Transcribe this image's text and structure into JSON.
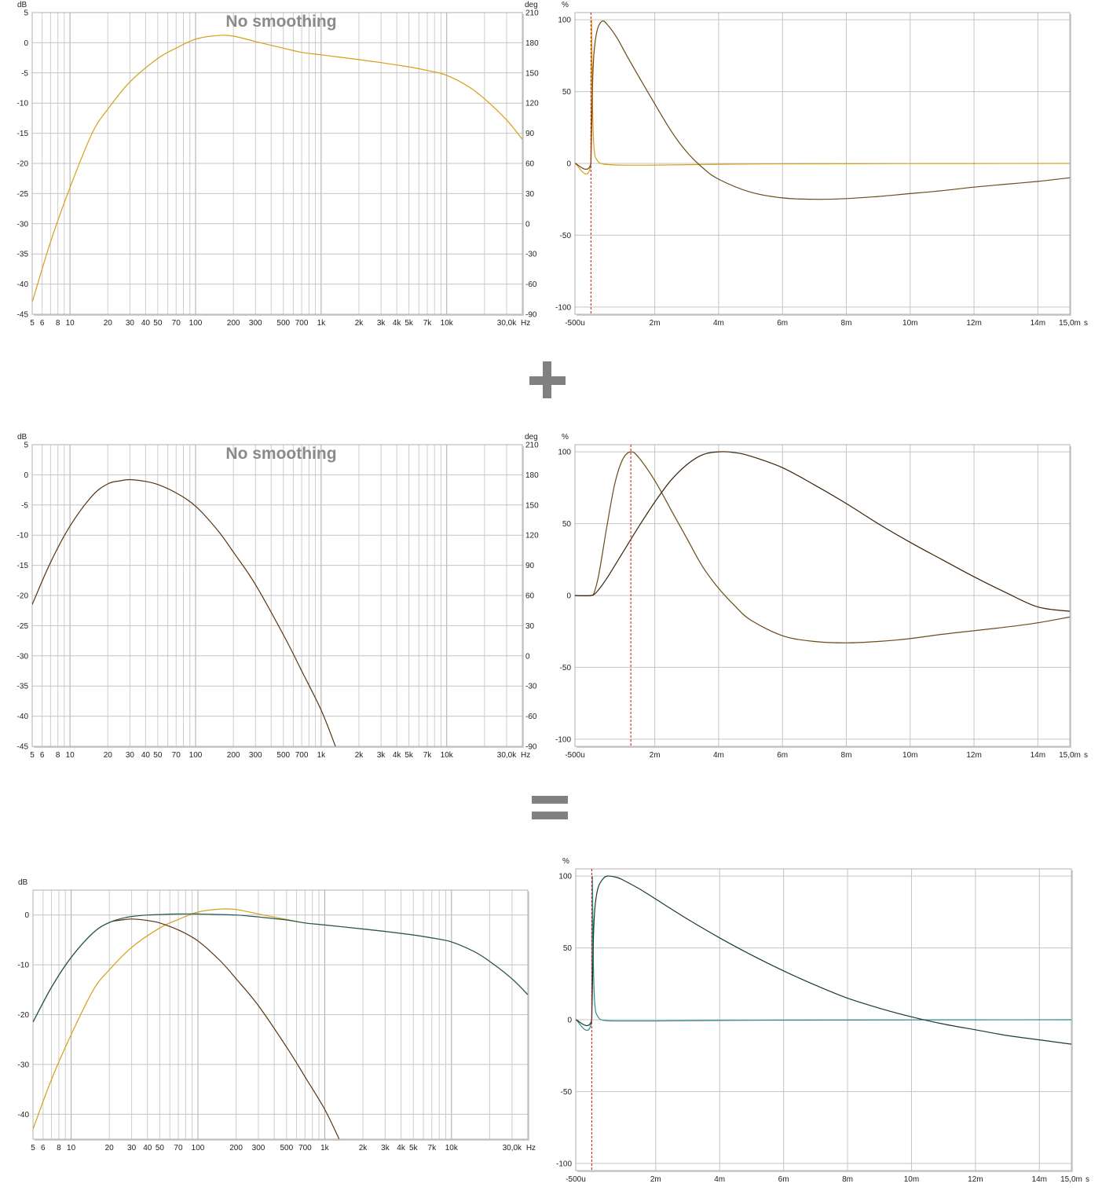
{
  "chart_data": [
    {
      "type": "line",
      "panel": "frequency-response",
      "annotation": "No smoothing",
      "x_scale": "log",
      "x_unit": "Hz",
      "xlim": [
        5,
        40000
      ],
      "x_tick_labels": [
        "5",
        "6",
        "8",
        "10",
        "20",
        "30",
        "40",
        "50",
        "70",
        "100",
        "200",
        "300",
        "500",
        "700",
        "1k",
        "2k",
        "3k",
        "4k",
        "5k",
        "7k",
        "10k",
        "30,0k"
      ],
      "x_tick_values": [
        5,
        6,
        8,
        10,
        20,
        30,
        40,
        50,
        70,
        100,
        200,
        300,
        500,
        700,
        1000,
        2000,
        3000,
        4000,
        5000,
        7000,
        10000,
        30000
      ],
      "y_unit": "dB",
      "ylim": [
        -45,
        5
      ],
      "y_ticks": [
        5,
        0,
        -5,
        -10,
        -15,
        -20,
        -25,
        -30,
        -35,
        -40,
        -45
      ],
      "y2_unit": "deg",
      "y2lim": [
        -90,
        210
      ],
      "y2_ticks": [
        210,
        180,
        150,
        120,
        90,
        60,
        30,
        0,
        -30,
        -60,
        -90
      ],
      "grid": true,
      "series": [
        {
          "color": "#d4a017",
          "x": [
            5,
            7,
            10,
            15,
            20,
            30,
            50,
            70,
            100,
            150,
            200,
            300,
            500,
            700,
            1000,
            2000,
            3000,
            5000,
            7000,
            10000,
            15000,
            20000,
            30000,
            40000
          ],
          "y": [
            -43,
            -33,
            -24,
            -15,
            -11,
            -6.5,
            -2.6,
            -0.9,
            0.6,
            1.2,
            1.1,
            0.2,
            -0.9,
            -1.6,
            -2.0,
            -2.8,
            -3.3,
            -4.0,
            -4.6,
            -5.4,
            -7.3,
            -9.3,
            -12.8,
            -16
          ]
        }
      ]
    },
    {
      "type": "line",
      "panel": "impulse-response",
      "x_unit": "s",
      "xlim": [
        -0.5,
        15.0
      ],
      "x_tick_labels": [
        "-500u",
        "2m",
        "4m",
        "6m",
        "8m",
        "10m",
        "12m",
        "14m",
        "15,0m"
      ],
      "x_tick_values": [
        -0.5,
        2,
        4,
        6,
        8,
        10,
        12,
        14,
        15
      ],
      "y_unit": "%",
      "ylim": [
        -105,
        105
      ],
      "y_ticks": [
        100,
        50,
        0,
        -50,
        -100
      ],
      "marker_x": 0,
      "grid": true,
      "series": [
        {
          "color": "#d4a017",
          "x": [
            -0.5,
            0,
            0.02,
            0.05,
            0.1,
            0.2,
            0.4,
            1,
            2,
            4,
            6,
            8,
            10,
            12,
            15
          ],
          "y": [
            0,
            0,
            100,
            40,
            10,
            2,
            -0.5,
            -1.2,
            -1.2,
            -0.6,
            -0.3,
            -0.2,
            -0.1,
            -0.05,
            0
          ]
        },
        {
          "color": "#6b4a1a",
          "x": [
            -0.5,
            0,
            0.05,
            0.1,
            0.2,
            0.35,
            0.5,
            0.8,
            1.2,
            1.8,
            2.5,
            3,
            3.5,
            4,
            5,
            6,
            7,
            8,
            9,
            10,
            11,
            12,
            13,
            14,
            15
          ],
          "y": [
            0,
            0,
            55,
            78,
            93,
            99,
            97,
            88,
            72,
            49,
            23,
            8,
            -3,
            -11,
            -20,
            -24,
            -25,
            -24.5,
            -23,
            -21,
            -19,
            -16.5,
            -14.5,
            -12.5,
            -10
          ]
        }
      ]
    },
    {
      "type": "line",
      "panel": "frequency-response",
      "annotation": "No smoothing",
      "x_scale": "log",
      "x_unit": "Hz",
      "xlim": [
        5,
        40000
      ],
      "x_tick_labels": [
        "5",
        "6",
        "8",
        "10",
        "20",
        "30",
        "40",
        "50",
        "70",
        "100",
        "200",
        "300",
        "500",
        "700",
        "1k",
        "2k",
        "3k",
        "4k",
        "5k",
        "7k",
        "10k",
        "30,0k"
      ],
      "x_tick_values": [
        5,
        6,
        8,
        10,
        20,
        30,
        40,
        50,
        70,
        100,
        200,
        300,
        500,
        700,
        1000,
        2000,
        3000,
        4000,
        5000,
        7000,
        10000,
        30000
      ],
      "y_unit": "dB",
      "ylim": [
        -45,
        5
      ],
      "y_ticks": [
        5,
        0,
        -5,
        -10,
        -15,
        -20,
        -25,
        -30,
        -35,
        -40,
        -45
      ],
      "y2_unit": "deg",
      "y2lim": [
        -90,
        210
      ],
      "y2_ticks": [
        210,
        180,
        150,
        120,
        90,
        60,
        30,
        0,
        -30,
        -60,
        -90
      ],
      "grid": true,
      "series": [
        {
          "color": "#5a3410",
          "x": [
            5,
            7,
            10,
            15,
            20,
            25,
            30,
            40,
            50,
            70,
            100,
            150,
            200,
            300,
            500,
            700,
            1000,
            1300
          ],
          "y": [
            -21.5,
            -14.5,
            -8.5,
            -3.5,
            -1.5,
            -1.0,
            -0.8,
            -1.1,
            -1.6,
            -3.0,
            -5.2,
            -9.2,
            -12.8,
            -18.2,
            -26.5,
            -32.5,
            -39,
            -45
          ]
        }
      ]
    },
    {
      "type": "line",
      "panel": "impulse-response",
      "x_unit": "s",
      "xlim": [
        -0.5,
        15.0
      ],
      "x_tick_labels": [
        "-500u",
        "2m",
        "4m",
        "6m",
        "8m",
        "10m",
        "12m",
        "14m",
        "15,0m"
      ],
      "x_tick_values": [
        -0.5,
        2,
        4,
        6,
        8,
        10,
        12,
        14,
        15
      ],
      "y_unit": "%",
      "ylim": [
        -105,
        105
      ],
      "y_ticks": [
        100,
        50,
        0,
        -50,
        -100
      ],
      "marker_x": 1.25,
      "grid": true,
      "series": [
        {
          "color": "#6b4a1a",
          "x": [
            -0.5,
            0,
            0.1,
            0.25,
            0.5,
            0.75,
            1,
            1.25,
            1.5,
            2,
            2.5,
            3,
            3.5,
            4,
            4.5,
            5,
            6,
            7,
            8,
            9,
            10,
            11,
            12,
            13,
            14,
            15
          ],
          "y": [
            0,
            0,
            2,
            15,
            48,
            78,
            95,
            100,
            96,
            80,
            60,
            40,
            20,
            5,
            -7,
            -17,
            -28,
            -32,
            -33,
            -32,
            -30,
            -27,
            -24.5,
            -22,
            -19,
            -15
          ]
        },
        {
          "color": "#3a2408",
          "x": [
            -0.5,
            0,
            0.2,
            0.5,
            1,
            1.5,
            2,
            2.5,
            3,
            3.5,
            4,
            4.5,
            5,
            6,
            7,
            8,
            9,
            10,
            11,
            12,
            13,
            14,
            15
          ],
          "y": [
            0,
            0,
            3,
            12,
            30,
            48,
            65,
            80,
            91,
            98,
            100,
            99.5,
            97,
            89,
            77,
            64,
            50,
            37,
            25,
            13,
            2,
            -8,
            -11
          ]
        }
      ]
    },
    {
      "type": "line",
      "panel": "frequency-response",
      "x_scale": "log",
      "x_unit": "Hz",
      "xlim": [
        5,
        40000
      ],
      "x_tick_labels": [
        "5",
        "6",
        "8",
        "10",
        "20",
        "30",
        "40",
        "50",
        "70",
        "100",
        "200",
        "300",
        "500",
        "700",
        "1k",
        "2k",
        "3k",
        "4k",
        "5k",
        "7k",
        "10k",
        "30,0k"
      ],
      "x_tick_values": [
        5,
        6,
        8,
        10,
        20,
        30,
        40,
        50,
        70,
        100,
        200,
        300,
        500,
        700,
        1000,
        2000,
        3000,
        4000,
        5000,
        7000,
        10000,
        30000
      ],
      "y_unit": "dB",
      "ylim": [
        -45,
        5
      ],
      "y_ticks": [
        0,
        -10,
        -20,
        -30,
        -40
      ],
      "grid": true,
      "series": [
        {
          "color": "#d4a017",
          "x": [
            5,
            7,
            10,
            15,
            20,
            30,
            50,
            70,
            100,
            150,
            200,
            300,
            500,
            700,
            1000,
            2000,
            3000,
            5000,
            7000,
            10000,
            15000,
            20000,
            30000,
            40000
          ],
          "y": [
            -43,
            -33,
            -24,
            -15,
            -11,
            -6.5,
            -2.6,
            -0.9,
            0.6,
            1.2,
            1.1,
            0.2,
            -0.9,
            -1.6,
            -2.0,
            -2.8,
            -3.3,
            -4.0,
            -4.6,
            -5.4,
            -7.3,
            -9.3,
            -12.8,
            -16
          ]
        },
        {
          "color": "#5a3410",
          "x": [
            5,
            7,
            10,
            15,
            20,
            25,
            30,
            40,
            50,
            70,
            100,
            150,
            200,
            300,
            500,
            700,
            1000,
            1300
          ],
          "y": [
            -21.5,
            -14.5,
            -8.5,
            -3.5,
            -1.5,
            -1.0,
            -0.8,
            -1.1,
            -1.6,
            -3.0,
            -5.2,
            -9.2,
            -12.8,
            -18.2,
            -26.5,
            -32.5,
            -39,
            -45
          ]
        },
        {
          "color": "#1f5a4a",
          "x": [
            5,
            7,
            10,
            15,
            20,
            25,
            30,
            40,
            50,
            70,
            100,
            150,
            200,
            300,
            500,
            700,
            1000,
            2000,
            3000,
            5000,
            7000,
            10000,
            15000,
            20000,
            30000,
            40000
          ],
          "y": [
            -21.5,
            -14.5,
            -8.5,
            -3.5,
            -1.5,
            -0.7,
            -0.3,
            0,
            0.1,
            0.2,
            0.2,
            0.1,
            0,
            -0.4,
            -1.0,
            -1.6,
            -2.0,
            -2.8,
            -3.3,
            -4.0,
            -4.6,
            -5.4,
            -7.3,
            -9.3,
            -12.8,
            -16
          ]
        }
      ]
    },
    {
      "type": "line",
      "panel": "impulse-response",
      "x_unit": "s",
      "xlim": [
        -0.5,
        15.0
      ],
      "x_tick_labels": [
        "-500u",
        "2m",
        "4m",
        "6m",
        "8m",
        "10m",
        "12m",
        "14m",
        "15,0m"
      ],
      "x_tick_values": [
        -0.5,
        2,
        4,
        6,
        8,
        10,
        12,
        14,
        15
      ],
      "y_unit": "%",
      "ylim": [
        -105,
        105
      ],
      "y_ticks": [
        100,
        50,
        0,
        -50,
        -100
      ],
      "marker_x": 0,
      "grid": true,
      "series": [
        {
          "color": "#2a8a8a",
          "x": [
            -0.5,
            0,
            0.02,
            0.05,
            0.1,
            0.2,
            0.4,
            1,
            2,
            4,
            6,
            8,
            10,
            12,
            15
          ],
          "y": [
            0,
            0,
            100,
            40,
            10,
            2,
            -0.5,
            -0.8,
            -0.8,
            -0.5,
            -0.3,
            -0.2,
            -0.1,
            -0.05,
            0
          ]
        },
        {
          "color": "#1a3a3a",
          "x": [
            -0.5,
            0,
            0.05,
            0.1,
            0.2,
            0.35,
            0.5,
            0.8,
            1,
            1.5,
            2,
            3,
            4,
            5,
            6,
            7,
            8,
            9,
            10,
            11,
            12,
            13,
            14,
            15
          ],
          "y": [
            0,
            0,
            55,
            78,
            92,
            98,
            100,
            99,
            97,
            91,
            84,
            70,
            57,
            45,
            34,
            24,
            15,
            8,
            2,
            -3,
            -7,
            -11,
            -14,
            -17
          ]
        }
      ]
    }
  ]
}
